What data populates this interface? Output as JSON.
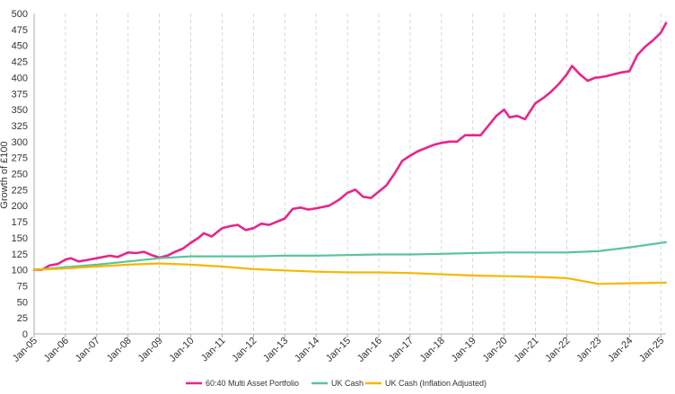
{
  "chart_data": {
    "type": "line",
    "title": "",
    "xlabel": "",
    "ylabel": "Growth of £100",
    "ylim": [
      0,
      500
    ],
    "yticks": [
      0,
      25,
      50,
      75,
      100,
      125,
      150,
      175,
      200,
      225,
      250,
      275,
      300,
      325,
      350,
      375,
      400,
      425,
      450,
      475,
      500
    ],
    "xticks": [
      "Jan-05",
      "Jan-06",
      "Jan-07",
      "Jan-08",
      "Jan-09",
      "Jan-10",
      "Jan-11",
      "Jan-12",
      "Jan-13",
      "Jan-14",
      "Jan-15",
      "Jan-16",
      "Jan-17",
      "Jan-18",
      "Jan-19",
      "Jan-20",
      "Jan-21",
      "Jan-22",
      "Jan-23",
      "Jan-24",
      "Jan-25"
    ],
    "grid": {
      "vertical": true,
      "horizontal": false,
      "style": "dashed"
    },
    "legend": "bottom",
    "series": [
      {
        "name": "60:40 Multi Asset Portfolio",
        "color": "#E8258A",
        "points": [
          [
            "Jan-05",
            100
          ],
          [
            "Apr-05",
            100
          ],
          [
            "Jul-05",
            107
          ],
          [
            "Oct-05",
            109
          ],
          [
            "Jan-06",
            116
          ],
          [
            "Mar-06",
            118
          ],
          [
            "Jun-06",
            113
          ],
          [
            "Sep-06",
            115
          ],
          [
            "Jan-07",
            118
          ],
          [
            "Jun-07",
            122
          ],
          [
            "Sep-07",
            120
          ],
          [
            "Jan-08",
            127
          ],
          [
            "Apr-08",
            126
          ],
          [
            "Jul-08",
            128
          ],
          [
            "Oct-08",
            123
          ],
          [
            "Jan-09",
            119
          ],
          [
            "Apr-09",
            122
          ],
          [
            "Jul-09",
            128
          ],
          [
            "Oct-09",
            133
          ],
          [
            "Jan-10",
            142
          ],
          [
            "Apr-10",
            150
          ],
          [
            "Jun-10",
            157
          ],
          [
            "Sep-10",
            152
          ],
          [
            "Jan-11",
            165
          ],
          [
            "Apr-11",
            168
          ],
          [
            "Jul-11",
            170
          ],
          [
            "Oct-11",
            162
          ],
          [
            "Jan-12",
            165
          ],
          [
            "Apr-12",
            172
          ],
          [
            "Jul-12",
            170
          ],
          [
            "Oct-12",
            175
          ],
          [
            "Jan-13",
            180
          ],
          [
            "Apr-13",
            195
          ],
          [
            "Jul-13",
            197
          ],
          [
            "Oct-13",
            194
          ],
          [
            "Jan-14",
            196
          ],
          [
            "Jun-14",
            200
          ],
          [
            "Oct-14",
            210
          ],
          [
            "Jan-15",
            220
          ],
          [
            "Apr-15",
            225
          ],
          [
            "Jul-15",
            214
          ],
          [
            "Oct-15",
            212
          ],
          [
            "Jan-16",
            222
          ],
          [
            "Apr-16",
            232
          ],
          [
            "Jul-16",
            250
          ],
          [
            "Oct-16",
            270
          ],
          [
            "Jan-17",
            278
          ],
          [
            "Apr-17",
            285
          ],
          [
            "Jul-17",
            290
          ],
          [
            "Oct-17",
            295
          ],
          [
            "Jan-18",
            298
          ],
          [
            "Apr-18",
            300
          ],
          [
            "Jul-18",
            300
          ],
          [
            "Oct-18",
            310
          ],
          [
            "Jan-19",
            310
          ],
          [
            "Apr-19",
            310
          ],
          [
            "Jul-19",
            325
          ],
          [
            "Oct-19",
            340
          ],
          [
            "Jan-20",
            350
          ],
          [
            "Mar-20",
            338
          ],
          [
            "Jun-20",
            340
          ],
          [
            "Sep-20",
            335
          ],
          [
            "Jan-21",
            360
          ],
          [
            "Apr-21",
            368
          ],
          [
            "Jul-21",
            378
          ],
          [
            "Oct-21",
            390
          ],
          [
            "Jan-22",
            405
          ],
          [
            "Mar-22",
            418
          ],
          [
            "Jun-22",
            405
          ],
          [
            "Sep-22",
            395
          ],
          [
            "Dec-22",
            400
          ],
          [
            "Jan-23",
            400
          ],
          [
            "Apr-23",
            402
          ],
          [
            "Jul-23",
            405
          ],
          [
            "Oct-23",
            408
          ],
          [
            "Jan-24",
            410
          ],
          [
            "Apr-24",
            435
          ],
          [
            "Jul-24",
            448
          ],
          [
            "Oct-24",
            458
          ],
          [
            "Jan-25",
            470
          ],
          [
            "Mar-25",
            485
          ]
        ]
      },
      {
        "name": "UK Cash",
        "color": "#5BC49A",
        "points": [
          [
            "Jan-05",
            100
          ],
          [
            "Jan-06",
            104
          ],
          [
            "Jan-07",
            108
          ],
          [
            "Jan-08",
            113
          ],
          [
            "Jan-09",
            118
          ],
          [
            "Jan-10",
            121
          ],
          [
            "Jan-11",
            121
          ],
          [
            "Jan-12",
            121
          ],
          [
            "Jan-13",
            122
          ],
          [
            "Jan-14",
            122
          ],
          [
            "Jan-15",
            123
          ],
          [
            "Jan-16",
            124
          ],
          [
            "Jan-17",
            124
          ],
          [
            "Jan-18",
            125
          ],
          [
            "Jan-19",
            126
          ],
          [
            "Jan-20",
            127
          ],
          [
            "Jan-21",
            127
          ],
          [
            "Jan-22",
            127
          ],
          [
            "Jan-23",
            129
          ],
          [
            "Jan-24",
            135
          ],
          [
            "Mar-25",
            143
          ]
        ]
      },
      {
        "name": "UK Cash (Inflation Adjusted)",
        "color": "#F5B800",
        "points": [
          [
            "Jan-05",
            100
          ],
          [
            "Jan-06",
            102
          ],
          [
            "Jan-07",
            105
          ],
          [
            "Jan-08",
            108
          ],
          [
            "Jan-09",
            110
          ],
          [
            "Jan-10",
            108
          ],
          [
            "Jan-11",
            105
          ],
          [
            "Jan-12",
            101
          ],
          [
            "Jan-13",
            99
          ],
          [
            "Jan-14",
            97
          ],
          [
            "Jan-15",
            96
          ],
          [
            "Jan-16",
            96
          ],
          [
            "Jan-17",
            95
          ],
          [
            "Jan-18",
            93
          ],
          [
            "Jan-19",
            91
          ],
          [
            "Jan-20",
            90
          ],
          [
            "Jan-21",
            89
          ],
          [
            "Jan-22",
            87
          ],
          [
            "Jan-23",
            78
          ],
          [
            "Jan-24",
            79
          ],
          [
            "Mar-25",
            80
          ]
        ]
      }
    ]
  }
}
